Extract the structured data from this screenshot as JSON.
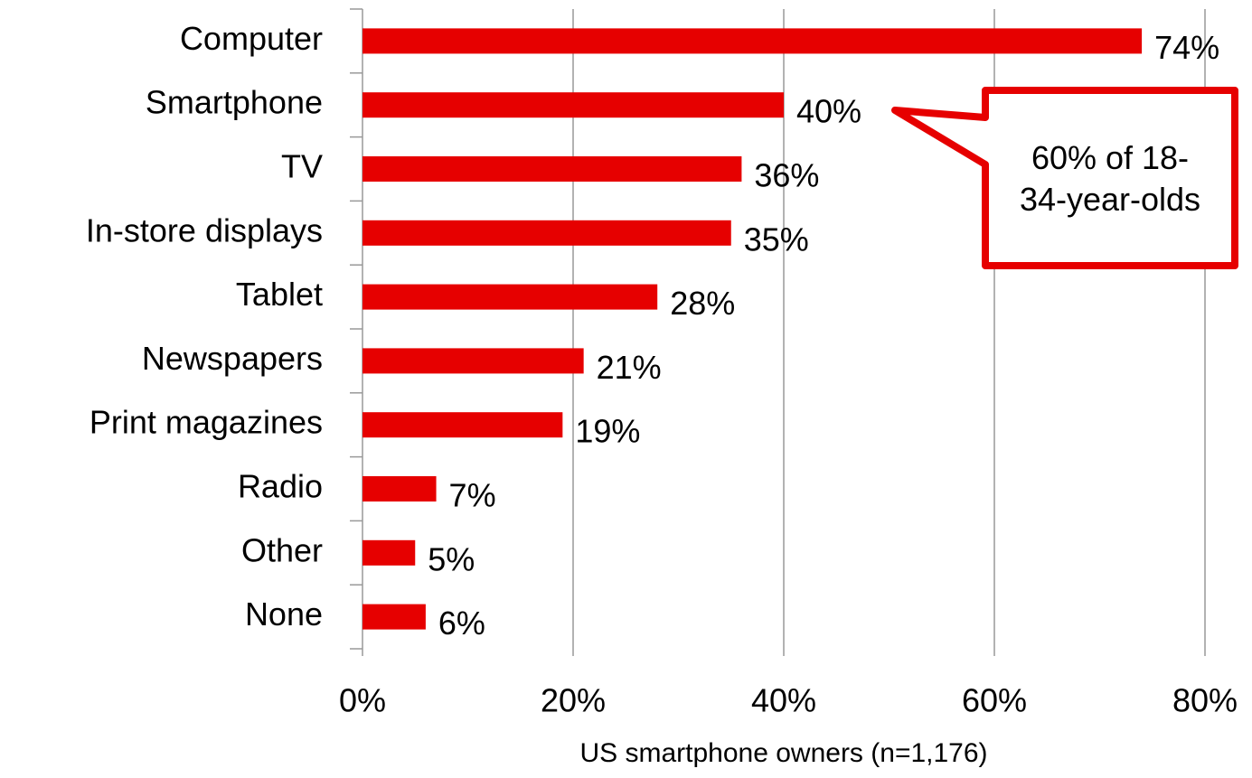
{
  "chart_data": {
    "type": "barh",
    "categories": [
      "Computer",
      "Smartphone",
      "TV",
      "In-store displays",
      "Tablet",
      "Newspapers",
      "Print magazines",
      "Radio",
      "Other",
      "None"
    ],
    "values": [
      74,
      40,
      36,
      35,
      28,
      21,
      19,
      7,
      5,
      6
    ],
    "value_labels": [
      "74%",
      "40%",
      "36%",
      "35%",
      "28%",
      "21%",
      "19%",
      "7%",
      "5%",
      "6%"
    ],
    "color": "#e60000",
    "xlabel": "US smartphone owners (n=1,176)",
    "xlim": [
      0,
      80
    ],
    "xticks": [
      {
        "value": 0,
        "label": "0%"
      },
      {
        "value": 20,
        "label": "20%"
      },
      {
        "value": 40,
        "label": "40%"
      },
      {
        "value": 60,
        "label": "60%"
      },
      {
        "value": 80,
        "label": "80%"
      }
    ],
    "grid": true,
    "annotation": "60% of 18-34-year-olds"
  }
}
